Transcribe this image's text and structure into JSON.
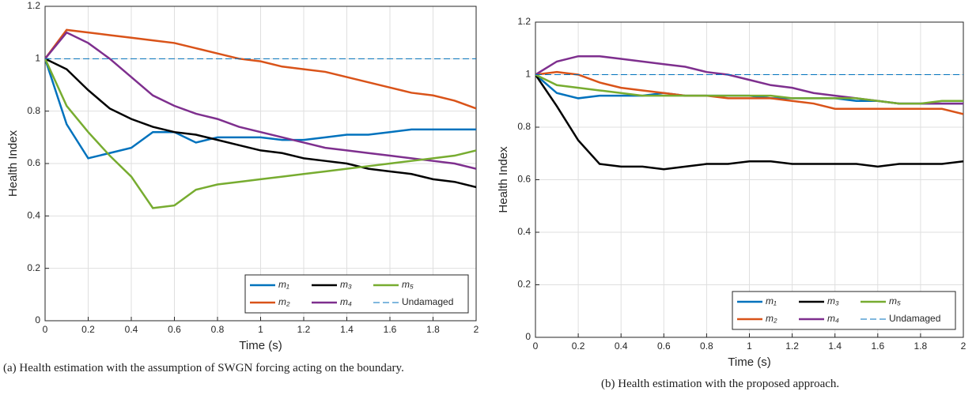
{
  "chart_data": [
    {
      "type": "line",
      "xlabel": "Time (s)",
      "ylabel": "Health Index",
      "caption": "(a) Health estimation with the assumption of SWGN forcing acting on the boundary.",
      "x": [
        0,
        0.1,
        0.2,
        0.3,
        0.4,
        0.5,
        0.6,
        0.7,
        0.8,
        0.9,
        1,
        1.1,
        1.2,
        1.3,
        1.4,
        1.5,
        1.6,
        1.7,
        1.8,
        1.9,
        2
      ],
      "xlim": [
        0,
        2
      ],
      "xticks": [
        0,
        0.2,
        0.4,
        0.6,
        0.8,
        1,
        1.2,
        1.4,
        1.6,
        1.8,
        2
      ],
      "ylim": [
        0,
        1.2
      ],
      "yticks": [
        0,
        0.2,
        0.4,
        0.6,
        0.8,
        1,
        1.2
      ],
      "grid": true,
      "legend": "lower right",
      "series": [
        {
          "name": "m₁",
          "color": "#0072BD",
          "values": [
            1.0,
            0.75,
            0.62,
            0.64,
            0.66,
            0.72,
            0.72,
            0.68,
            0.7,
            0.7,
            0.7,
            0.69,
            0.69,
            0.7,
            0.71,
            0.71,
            0.72,
            0.73,
            0.73,
            0.73,
            0.73
          ]
        },
        {
          "name": "m₂",
          "color": "#D95319",
          "values": [
            1.0,
            1.11,
            1.1,
            1.09,
            1.08,
            1.07,
            1.06,
            1.04,
            1.02,
            1.0,
            0.99,
            0.97,
            0.96,
            0.95,
            0.93,
            0.91,
            0.89,
            0.87,
            0.86,
            0.84,
            0.81
          ]
        },
        {
          "name": "m₃",
          "color": "#000000",
          "values": [
            1.0,
            0.96,
            0.88,
            0.81,
            0.77,
            0.74,
            0.72,
            0.71,
            0.69,
            0.67,
            0.65,
            0.64,
            0.62,
            0.61,
            0.6,
            0.58,
            0.57,
            0.56,
            0.54,
            0.53,
            0.51
          ]
        },
        {
          "name": "m₄",
          "color": "#7E2F8E",
          "values": [
            1.0,
            1.1,
            1.06,
            1.0,
            0.93,
            0.86,
            0.82,
            0.79,
            0.77,
            0.74,
            0.72,
            0.7,
            0.68,
            0.66,
            0.65,
            0.64,
            0.63,
            0.62,
            0.61,
            0.6,
            0.58
          ]
        },
        {
          "name": "m₅",
          "color": "#77AC30",
          "values": [
            1.0,
            0.82,
            0.72,
            0.63,
            0.55,
            0.43,
            0.44,
            0.5,
            0.52,
            0.53,
            0.54,
            0.55,
            0.56,
            0.57,
            0.58,
            0.59,
            0.6,
            0.61,
            0.62,
            0.63,
            0.65
          ]
        },
        {
          "name": "Undamaged",
          "color": "#0072BD",
          "dashed": true,
          "values": [
            1,
            1,
            1,
            1,
            1,
            1,
            1,
            1,
            1,
            1,
            1,
            1,
            1,
            1,
            1,
            1,
            1,
            1,
            1,
            1,
            1
          ]
        }
      ]
    },
    {
      "type": "line",
      "xlabel": "Time (s)",
      "ylabel": "Health Index",
      "caption": "(b) Health estimation with the proposed approach.",
      "x": [
        0,
        0.1,
        0.2,
        0.3,
        0.4,
        0.5,
        0.6,
        0.7,
        0.8,
        0.9,
        1,
        1.1,
        1.2,
        1.3,
        1.4,
        1.5,
        1.6,
        1.7,
        1.8,
        1.9,
        2
      ],
      "xlim": [
        0,
        2
      ],
      "xticks": [
        0,
        0.2,
        0.4,
        0.6,
        0.8,
        1,
        1.2,
        1.4,
        1.6,
        1.8,
        2
      ],
      "ylim": [
        0,
        1.2
      ],
      "yticks": [
        0,
        0.2,
        0.4,
        0.6,
        0.8,
        1,
        1.2
      ],
      "grid": true,
      "legend": "lower right",
      "series": [
        {
          "name": "m₁",
          "color": "#0072BD",
          "values": [
            1.0,
            0.93,
            0.91,
            0.92,
            0.92,
            0.92,
            0.93,
            0.92,
            0.92,
            0.92,
            0.92,
            0.91,
            0.91,
            0.91,
            0.91,
            0.9,
            0.9,
            0.89,
            0.89,
            0.89,
            0.89
          ]
        },
        {
          "name": "m₂",
          "color": "#D95319",
          "values": [
            1.0,
            1.01,
            1.0,
            0.97,
            0.95,
            0.94,
            0.93,
            0.92,
            0.92,
            0.91,
            0.91,
            0.91,
            0.9,
            0.89,
            0.87,
            0.87,
            0.87,
            0.87,
            0.87,
            0.87,
            0.85
          ]
        },
        {
          "name": "m₃",
          "color": "#000000",
          "values": [
            1.0,
            0.88,
            0.75,
            0.66,
            0.65,
            0.65,
            0.64,
            0.65,
            0.66,
            0.66,
            0.67,
            0.67,
            0.66,
            0.66,
            0.66,
            0.66,
            0.65,
            0.66,
            0.66,
            0.66,
            0.67
          ]
        },
        {
          "name": "m₄",
          "color": "#7E2F8E",
          "values": [
            1.0,
            1.05,
            1.07,
            1.07,
            1.06,
            1.05,
            1.04,
            1.03,
            1.01,
            1.0,
            0.98,
            0.96,
            0.95,
            0.93,
            0.92,
            0.91,
            0.9,
            0.89,
            0.89,
            0.89,
            0.89
          ]
        },
        {
          "name": "m₅",
          "color": "#77AC30",
          "values": [
            1.0,
            0.96,
            0.95,
            0.94,
            0.93,
            0.92,
            0.92,
            0.92,
            0.92,
            0.92,
            0.92,
            0.92,
            0.91,
            0.91,
            0.91,
            0.91,
            0.9,
            0.89,
            0.89,
            0.9,
            0.9
          ]
        },
        {
          "name": "Undamaged",
          "color": "#0072BD",
          "dashed": true,
          "values": [
            1,
            1,
            1,
            1,
            1,
            1,
            1,
            1,
            1,
            1,
            1,
            1,
            1,
            1,
            1,
            1,
            1,
            1,
            1,
            1,
            1
          ]
        }
      ]
    }
  ]
}
